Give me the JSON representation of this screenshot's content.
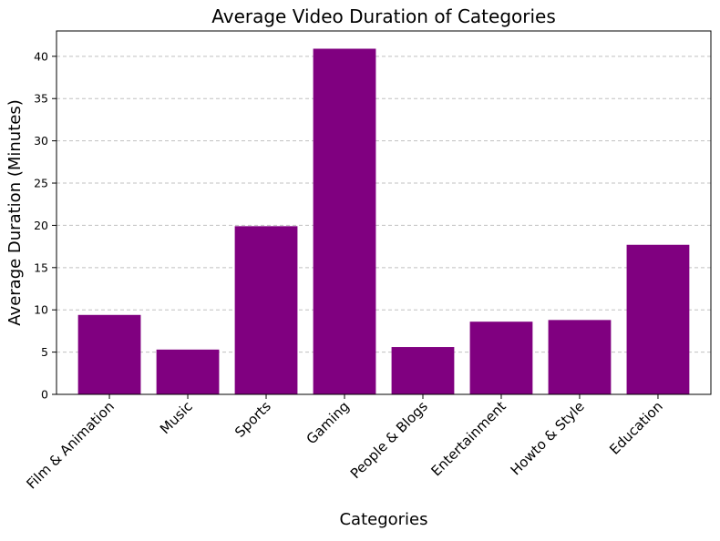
{
  "chart_data": {
    "type": "bar",
    "title": "Average Video Duration of Categories",
    "xlabel": "Categories",
    "ylabel": "Average Duration (Minutes)",
    "categories": [
      "Film & Animation",
      "Music",
      "Sports",
      "Gaming",
      "People & Blogs",
      "Entertainment",
      "Howto & Style",
      "Education"
    ],
    "values": [
      9.4,
      5.3,
      19.9,
      40.9,
      5.6,
      8.6,
      8.8,
      17.7
    ],
    "ylim": [
      0,
      43
    ],
    "yticks": [
      0,
      5,
      10,
      15,
      20,
      25,
      30,
      35,
      40
    ],
    "grid": "y-dashed",
    "bar_color": "#800080",
    "grid_color": "#c0c0c0"
  }
}
